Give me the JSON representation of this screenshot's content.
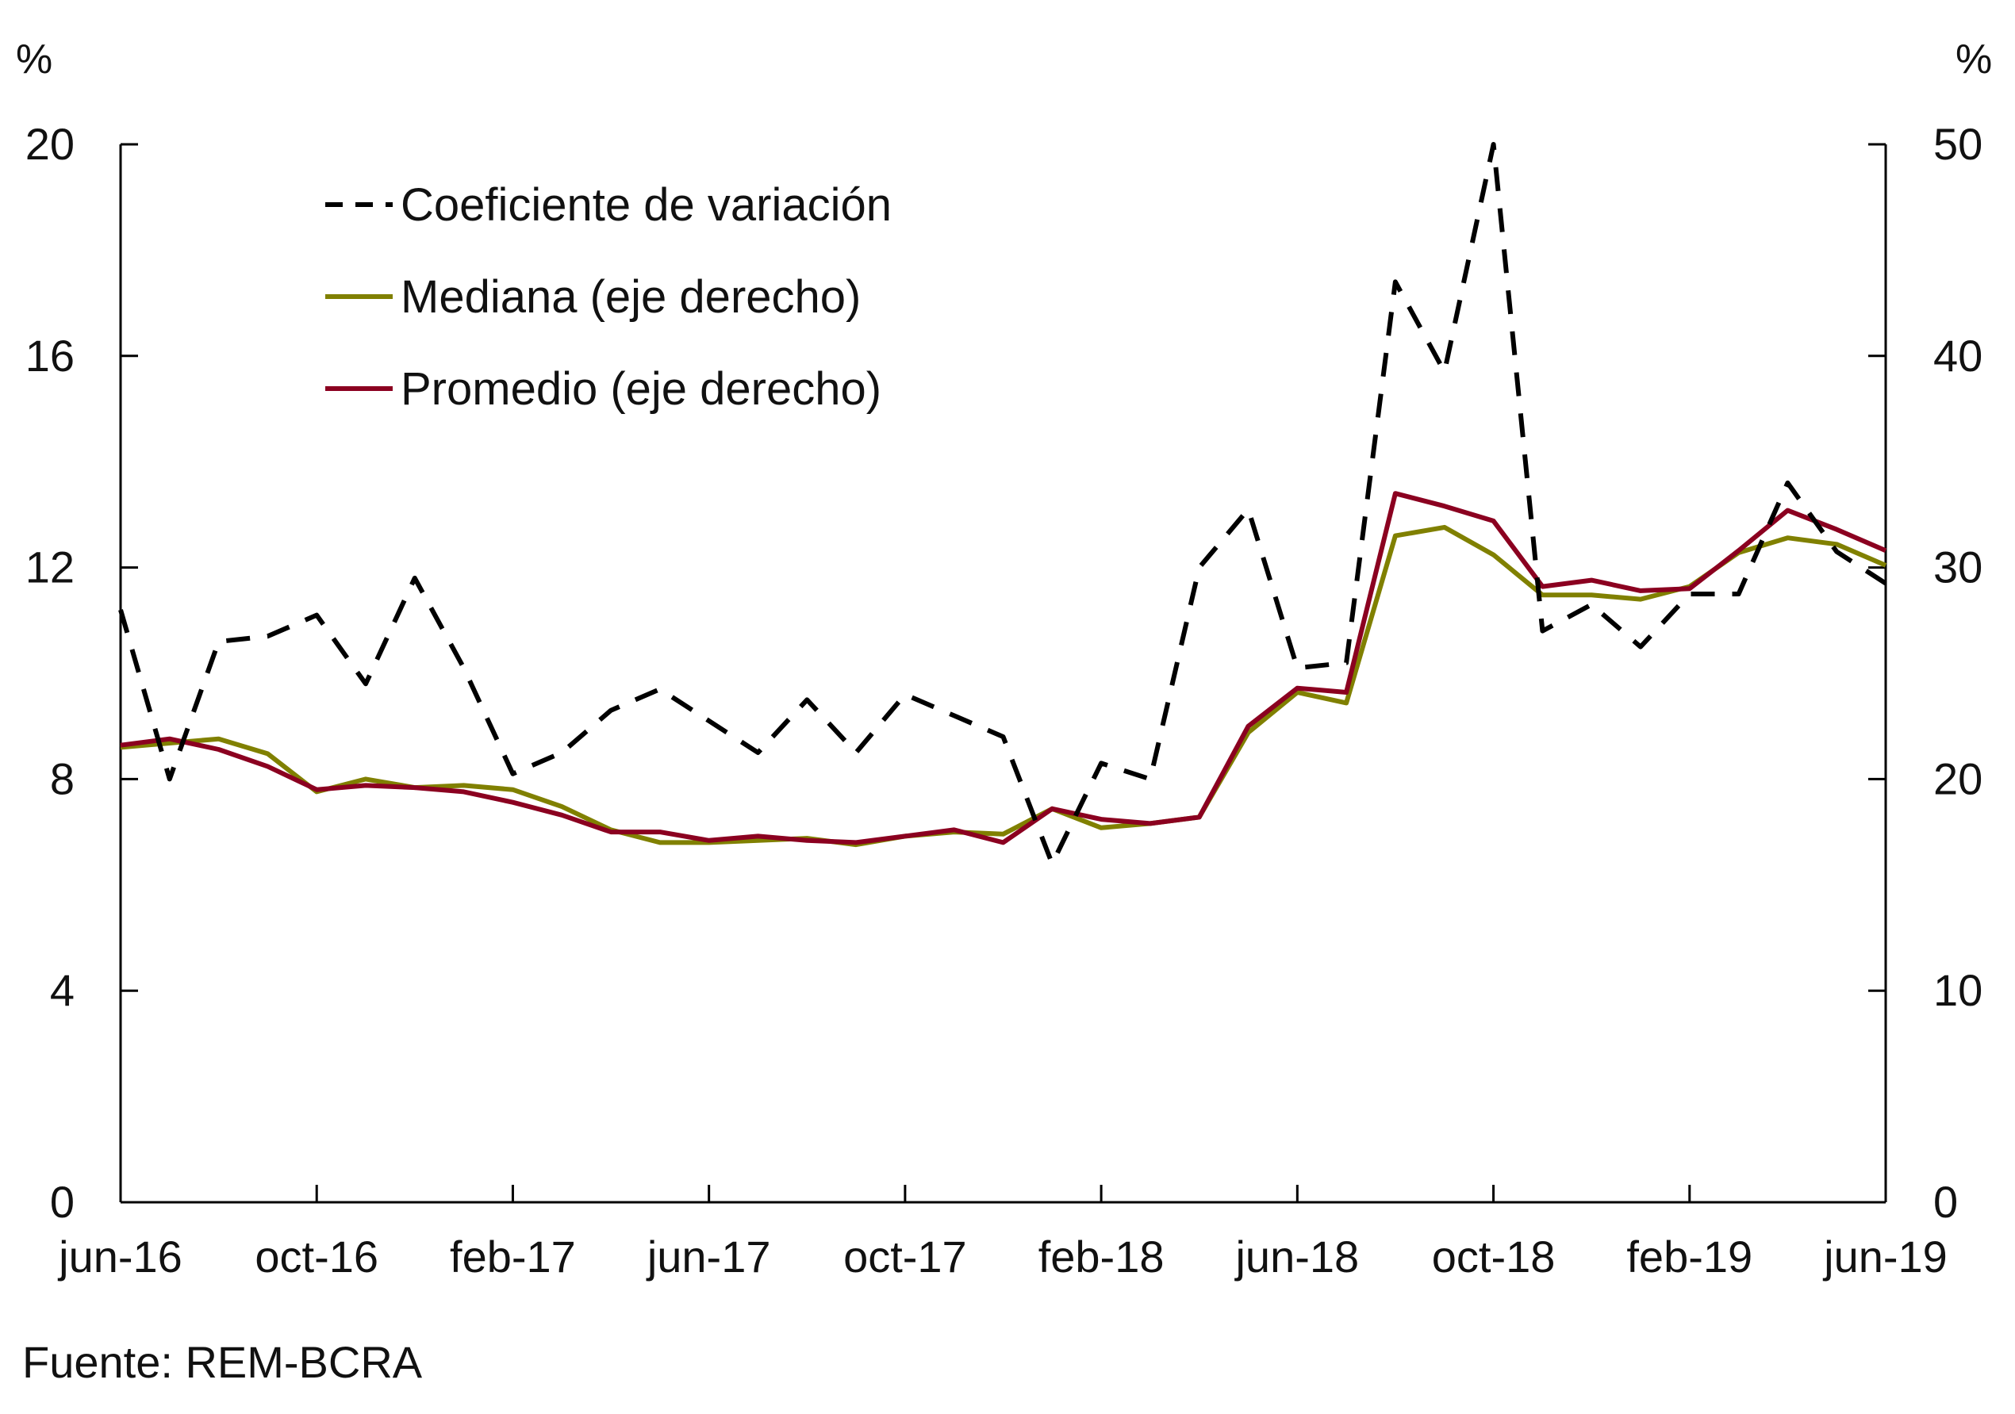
{
  "chart_data": {
    "type": "line",
    "x": [
      "jun-16",
      "jul-16",
      "ago-16",
      "sep-16",
      "oct-16",
      "nov-16",
      "dic-16",
      "ene-17",
      "feb-17",
      "mar-17",
      "abr-17",
      "may-17",
      "jun-17",
      "jul-17",
      "ago-17",
      "sep-17",
      "oct-17",
      "nov-17",
      "dic-17",
      "ene-18",
      "feb-18",
      "mar-18",
      "abr-18",
      "may-18",
      "jun-18",
      "jul-18",
      "ago-18",
      "sep-18",
      "oct-18",
      "nov-18",
      "dic-18",
      "ene-19",
      "feb-19",
      "mar-19",
      "abr-19",
      "may-19",
      "jun-19"
    ],
    "x_tick_labels": [
      "jun-16",
      "oct-16",
      "feb-17",
      "jun-17",
      "oct-17",
      "feb-18",
      "jun-18",
      "oct-18",
      "feb-19",
      "jun-19"
    ],
    "left_axis": {
      "label": "%",
      "ylim": [
        0,
        20
      ],
      "ticks": [
        "0",
        "4",
        "8",
        "12",
        "16",
        "20"
      ]
    },
    "right_axis": {
      "label": "%",
      "ylim": [
        0,
        50
      ],
      "ticks": [
        "0",
        "10",
        "20",
        "30",
        "40",
        "50"
      ]
    },
    "grid": false,
    "legend_position": "top-left",
    "series": [
      {
        "name": "Coeficiente de variación",
        "axis": "left",
        "color": "#000000",
        "style": "dashed",
        "values": [
          11.2,
          8.0,
          10.6,
          10.7,
          11.1,
          9.8,
          11.8,
          10.1,
          8.1,
          8.5,
          9.3,
          9.7,
          9.1,
          8.5,
          9.5,
          8.5,
          9.6,
          9.2,
          8.8,
          6.4,
          8.3,
          8.0,
          12.0,
          13.1,
          10.1,
          10.2,
          17.4,
          15.7,
          20.0,
          10.8,
          11.3,
          10.5,
          11.5,
          11.5,
          13.6,
          12.3,
          11.7
        ]
      },
      {
        "name": "Mediana (eje derecho)",
        "axis": "right",
        "color": "#808000",
        "style": "solid",
        "values": [
          21.5,
          21.7,
          21.9,
          21.2,
          19.4,
          20.0,
          19.6,
          19.7,
          19.5,
          18.7,
          17.6,
          17.0,
          17.0,
          17.1,
          17.2,
          16.9,
          17.3,
          17.5,
          17.4,
          18.6,
          17.7,
          17.9,
          18.2,
          22.2,
          24.1,
          23.6,
          31.5,
          31.9,
          30.6,
          28.7,
          28.7,
          28.5,
          29.1,
          30.7,
          31.4,
          31.1,
          30.1
        ]
      },
      {
        "name": "Promedio (eje derecho)",
        "axis": "right",
        "color": "#8B0020",
        "style": "solid",
        "values": [
          21.6,
          21.9,
          21.4,
          20.6,
          19.5,
          19.7,
          19.6,
          19.4,
          18.9,
          18.3,
          17.5,
          17.5,
          17.1,
          17.3,
          17.1,
          17.0,
          17.3,
          17.6,
          17.0,
          18.6,
          18.1,
          17.9,
          18.2,
          22.5,
          24.3,
          24.1,
          33.5,
          32.9,
          32.2,
          29.1,
          29.4,
          28.9,
          29.0,
          30.8,
          32.7,
          31.8,
          30.8
        ]
      }
    ]
  },
  "source": "Fuente: REM-BCRA"
}
